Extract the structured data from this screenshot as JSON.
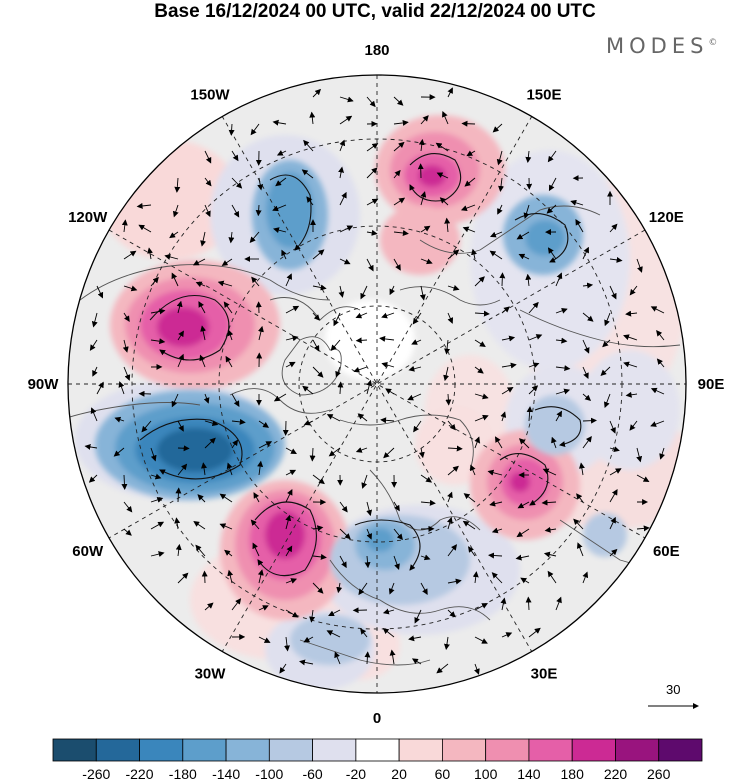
{
  "title": "Base 16/12/2024 00 UTC, valid 22/12/2024 00 UTC",
  "logo": "MODES",
  "logo_mark": "©",
  "longitude_labels": [
    {
      "lon": 180,
      "text": "180"
    },
    {
      "lon": 150,
      "text": "150E"
    },
    {
      "lon": 120,
      "text": "120E"
    },
    {
      "lon": 90,
      "text": "90E"
    },
    {
      "lon": 60,
      "text": "60E"
    },
    {
      "lon": 30,
      "text": "30E"
    },
    {
      "lon": 0,
      "text": "0"
    },
    {
      "lon": -30,
      "text": "30W"
    },
    {
      "lon": -60,
      "text": "60W"
    },
    {
      "lon": -90,
      "text": "90W"
    },
    {
      "lon": -120,
      "text": "120W"
    },
    {
      "lon": -150,
      "text": "150W"
    }
  ],
  "reference_vector": {
    "value": "30"
  },
  "colorbar": {
    "ticks": [
      "-260",
      "-220",
      "-180",
      "-140",
      "-100",
      "-60",
      "-20",
      "20",
      "60",
      "100",
      "140",
      "180",
      "220",
      "260"
    ],
    "colors": [
      "#1b4d6e",
      "#24689a",
      "#3a86bc",
      "#5d9ecb",
      "#87b4d8",
      "#b6c9e2",
      "#dfe0ee",
      "#ffffff",
      "#f9d9d9",
      "#f4b7c0",
      "#ef8fb0",
      "#e55fa8",
      "#cc2a94",
      "#99147e",
      "#5e0a6d"
    ]
  },
  "colors": {
    "background": "#ededed",
    "anomaly_positive": "#cc2a94",
    "anomaly_negative": "#24689a"
  }
}
